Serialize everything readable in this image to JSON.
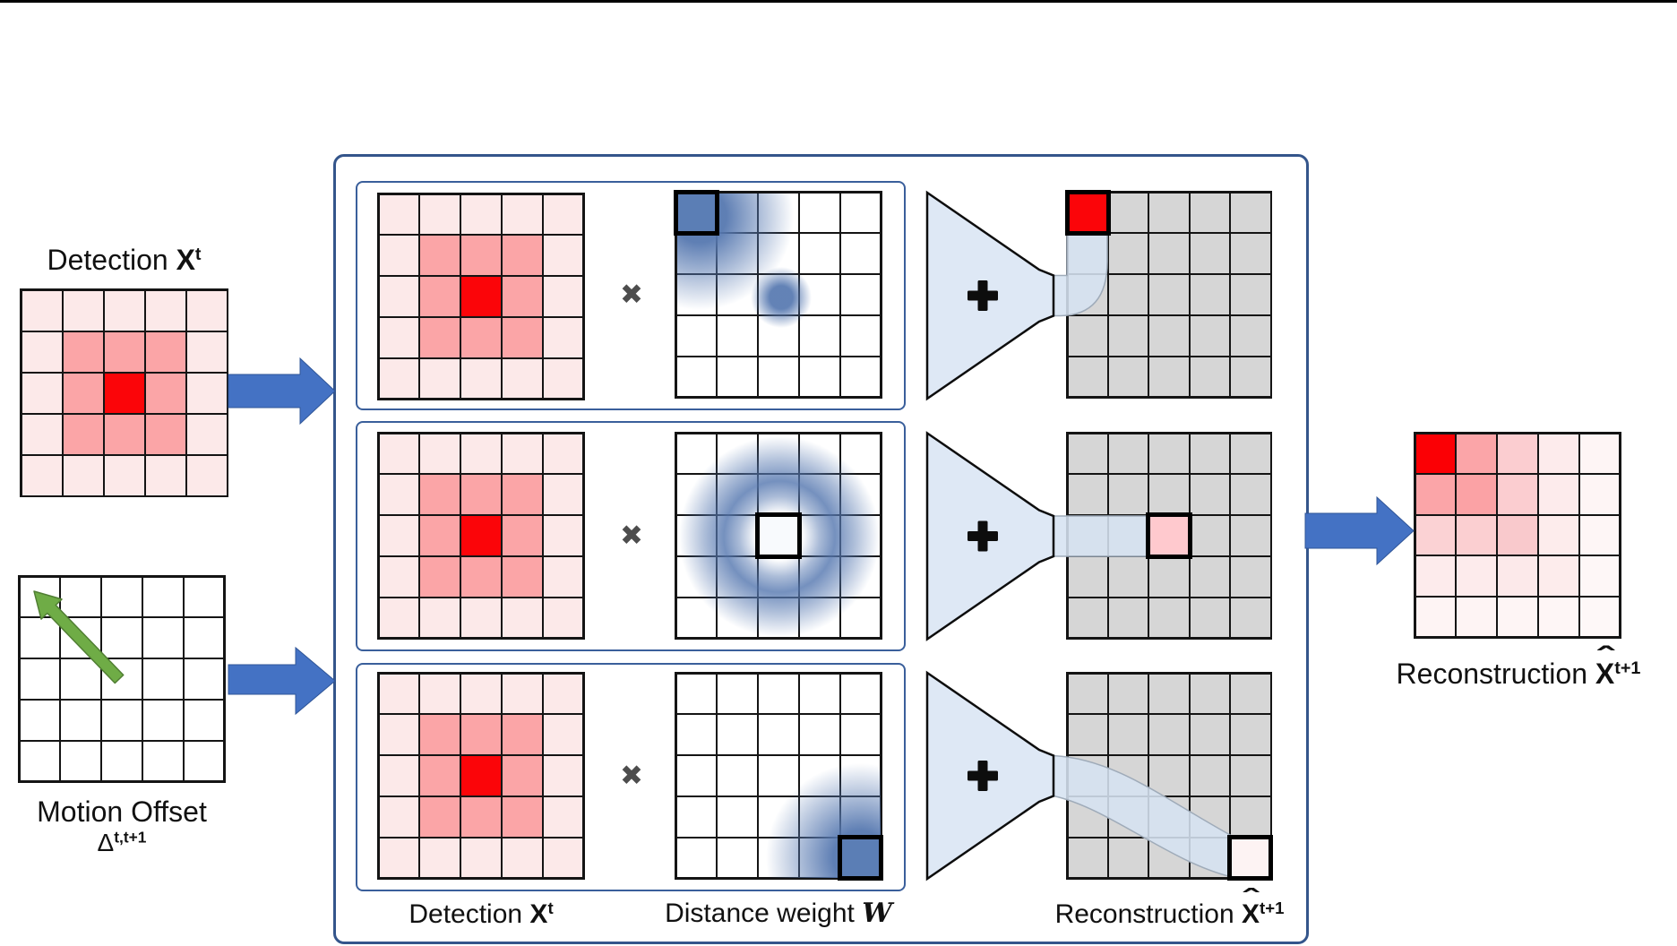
{
  "colors": {
    "arrow_blue": "#4472C4",
    "arrow_blue_stroke": "#2F5597",
    "green_arrow": "#6FAC46",
    "green_arrow_stroke": "#507E33",
    "box_border": "#34558B",
    "inner_box_border": "#3A5F9B",
    "funnel_fill": "#DEE8F5",
    "funnel_stroke": "#0D0D0D",
    "pipe_fill": "rgba(214,227,241,0.88)",
    "pipe_stroke": "#9FABB9",
    "weight_blue": "#5B7EB5",
    "grid_gray": "#D6D6D6",
    "detection_red": "#FB0509",
    "detection_mid": "#FBA5A7",
    "detection_light": "#FCE9E9"
  },
  "labels": {
    "detection_left": {
      "text": "Detection ",
      "symbol": "X",
      "sup": "t"
    },
    "motion_line1": "Motion Offset",
    "motion_symbol": "Δ",
    "motion_sup": "t,t+1",
    "box_detection": {
      "text": "Detection ",
      "symbol": "X",
      "sup": "t"
    },
    "box_weight": {
      "text": "Distance weight ",
      "symbol": "W"
    },
    "box_recon": {
      "text": "Reconstruction ",
      "symbol": "X",
      "hat": "ˆ",
      "sup": "t+1"
    },
    "output_recon": {
      "text": "Reconstruction ",
      "symbol": "X",
      "hat": "ˆ",
      "sup": "t+1"
    },
    "multiply": "✖",
    "plus": "+"
  },
  "cell_patterns": {
    "detection": [
      [
        "#FCE9E9",
        "#FCE9E9",
        "#FCE9E9",
        "#FCE9E9",
        "#FCE9E9"
      ],
      [
        "#FCE9E9",
        "#FBA5A7",
        "#FBA5A7",
        "#FBA5A7",
        "#FCE9E9"
      ],
      [
        "#FCE9E9",
        "#FBA5A7",
        "#FB0509",
        "#FBA5A7",
        "#FCE9E9"
      ],
      [
        "#FCE9E9",
        "#FBA5A7",
        "#FBA5A7",
        "#FBA5A7",
        "#FCE9E9"
      ],
      [
        "#FCE9E9",
        "#FCE9E9",
        "#FCE9E9",
        "#FCE9E9",
        "#FCE9E9"
      ]
    ]
  },
  "grids": {
    "det_left": {
      "pattern": "detection"
    },
    "motion": {
      "fill": "#FFFFFF"
    },
    "det_r1": {
      "pattern": "detection"
    },
    "det_r2": {
      "pattern": "detection"
    },
    "det_r3": {
      "pattern": "detection"
    },
    "w_r1": {
      "fill": "#FFFFFF",
      "overlay": "tl",
      "highlights": [
        {
          "r": 0,
          "c": 0,
          "fill": "#5B7EB5"
        }
      ]
    },
    "w_r2": {
      "fill": "#FFFFFF",
      "overlay": "ring",
      "highlights": [
        {
          "r": 2,
          "c": 2,
          "fill": "#F8FAFD"
        }
      ]
    },
    "w_r3": {
      "fill": "#FFFFFF",
      "overlay": "br",
      "highlights": [
        {
          "r": 4,
          "c": 4,
          "fill": "#5B7EB5"
        }
      ]
    },
    "recon_r1": {
      "fill": "#D6D6D6",
      "highlights": [
        {
          "r": 0,
          "c": 0,
          "fill": "#FB0509"
        }
      ]
    },
    "recon_r2": {
      "fill": "#D6D6D6",
      "highlights": [
        {
          "r": 2,
          "c": 2,
          "fill": "#FFC9CE"
        }
      ]
    },
    "recon_r3": {
      "fill": "#D6D6D6",
      "highlights": [
        {
          "r": 4,
          "c": 4,
          "fill": "#FDF3F3"
        }
      ]
    },
    "final": {
      "cells": [
        [
          "#FB0005",
          "#FBA5A8",
          "#FBCDD0",
          "#FDEBEC",
          "#FEF5F5"
        ],
        [
          "#FBA5A8",
          "#FBA2A5",
          "#FBCDD0",
          "#FDEBEC",
          "#FEF5F5"
        ],
        [
          "#FBD2D4",
          "#FBCFD1",
          "#F9C9CC",
          "#FDECEC",
          "#FEF6F6"
        ],
        [
          "#FDEBEC",
          "#FDEBEC",
          "#FCE9EA",
          "#FDECEC",
          "#FEF7F7"
        ],
        [
          "#FEF4F4",
          "#FEF4F4",
          "#FEF5F5",
          "#FEF6F6",
          "#FEF8F8"
        ]
      ]
    }
  }
}
